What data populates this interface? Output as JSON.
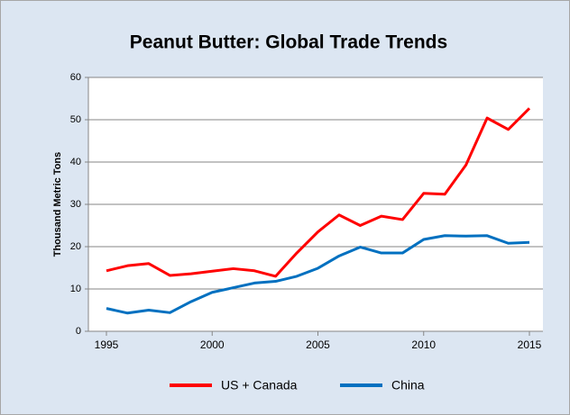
{
  "chart_data": {
    "type": "line",
    "title": "Peanut Butter: Global Trade Trends",
    "y_label": "Thousand Metric Tons",
    "x": [
      1995,
      1996,
      1997,
      1998,
      1999,
      2000,
      2001,
      2002,
      2003,
      2004,
      2005,
      2006,
      2007,
      2008,
      2009,
      2010,
      2011,
      2012,
      2013,
      2014,
      2015
    ],
    "series": [
      {
        "name": "US + Canada",
        "color": "#ff0000",
        "values": [
          14.3,
          15.5,
          16,
          13.2,
          13.6,
          14.2,
          14.8,
          14.3,
          13,
          18.5,
          23.5,
          27.5,
          25,
          27.2,
          26.4,
          32.6,
          32.4,
          39.3,
          50.4,
          47.7,
          52.7
        ]
      },
      {
        "name": "China",
        "color": "#0070c0",
        "values": [
          5.4,
          4.3,
          5,
          4.4,
          7,
          9.2,
          10.3,
          11.4,
          11.8,
          13,
          14.9,
          17.8,
          19.9,
          18.5,
          18.5,
          21.7,
          22.6,
          22.5,
          22.6,
          20.8,
          21
        ]
      }
    ],
    "xlim": [
      1995,
      2015
    ],
    "xticks": [
      1995,
      2000,
      2005,
      2010,
      2015
    ],
    "ylim": [
      0,
      60
    ],
    "yticks": [
      0,
      10,
      20,
      30,
      40,
      50,
      60
    ],
    "grid": true,
    "legend": "bottom"
  }
}
